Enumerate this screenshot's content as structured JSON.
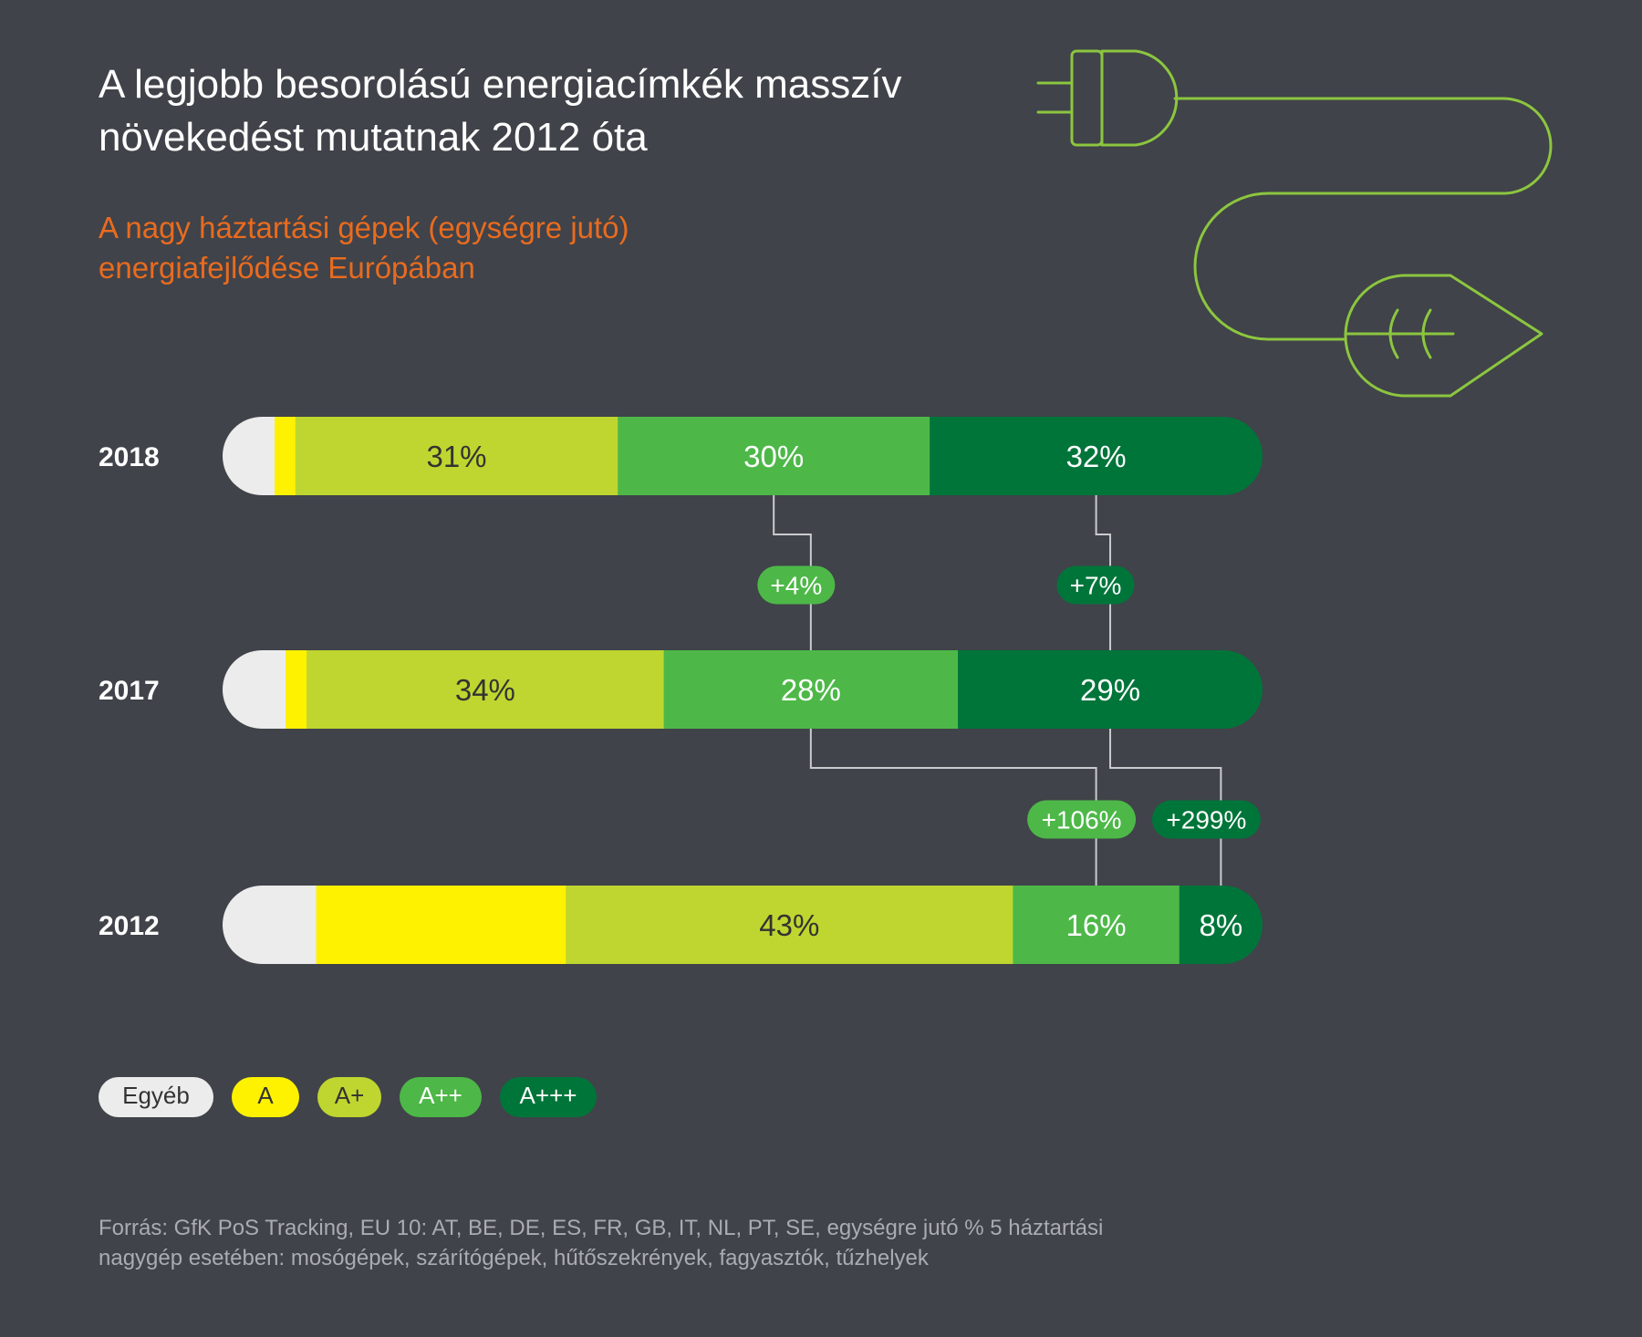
{
  "header": {
    "title_lines": [
      "A legjobb besorolású energiacímkék masszív",
      "növekedést mutatnak 2012 óta"
    ],
    "subtitle_lines": [
      "A nagy háztartási gépek (egységre jutó)",
      "energiafejlődése Európában"
    ]
  },
  "colors": {
    "background": "#404349",
    "other": "#ececec",
    "A": "#fff200",
    "A+": "#bed62f",
    "A++": "#4db848",
    "A+++": "#00753a",
    "connector": "#c9cbce",
    "plug_icon": "#8cc63f",
    "subtitle": "#e96b1f"
  },
  "icon": "plug-leaf-icon",
  "chart_data": {
    "type": "bar",
    "orientation": "horizontal-stacked",
    "categories": [
      "2018",
      "2017",
      "2012"
    ],
    "series": [
      {
        "name": "Egyéb",
        "values": [
          5,
          6,
          9
        ]
      },
      {
        "name": "A",
        "values": [
          2,
          2,
          24
        ]
      },
      {
        "name": "A+",
        "values": [
          31,
          34,
          43
        ]
      },
      {
        "name": "A++",
        "values": [
          30,
          28,
          16
        ]
      },
      {
        "name": "A+++",
        "values": [
          32,
          29,
          8
        ]
      }
    ],
    "data_labels": [
      [
        "",
        "",
        "31%",
        "30%",
        "32%"
      ],
      [
        "",
        "",
        "34%",
        "28%",
        "29%"
      ],
      [
        "",
        "",
        "43%",
        "16%",
        "8%"
      ]
    ],
    "changes": [
      {
        "label": "+4%",
        "series": "A++",
        "between": [
          "2017",
          "2018"
        ]
      },
      {
        "label": "+7%",
        "series": "A+++",
        "between": [
          "2017",
          "2018"
        ]
      },
      {
        "label": "+106%",
        "series": "A++",
        "between": [
          "2012",
          "2017"
        ]
      },
      {
        "label": "+299%",
        "series": "A+++",
        "between": [
          "2012",
          "2017"
        ]
      }
    ],
    "legend": [
      "Egyéb",
      "A",
      "A+",
      "A++",
      "A+++"
    ],
    "legend_placement": "bottom-left"
  },
  "source_lines": [
    "Forrás: GfK PoS Tracking, EU 10: AT, BE, DE, ES, FR, GB, IT, NL, PT, SE, egységre jutó % 5 háztartási",
    "nagygép esetében: mosógépek, szárítógépek, hűtőszekrények, fagyasztók, tűzhelyek"
  ]
}
